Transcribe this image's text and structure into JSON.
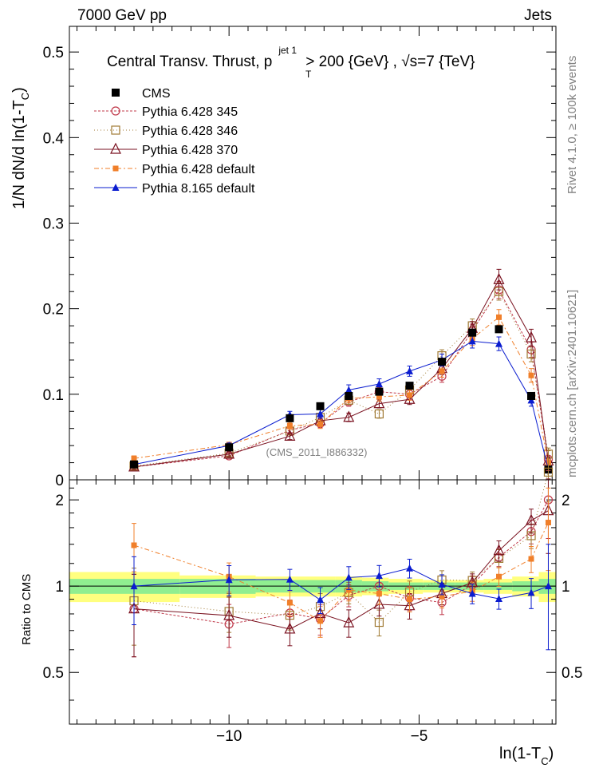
{
  "header": {
    "left": "7000 GeV pp",
    "right": "Jets"
  },
  "side": {
    "events": "Rivet 4.1.0, ≥ 100k events",
    "source": "mcplots.cern.ch [arXiv:2401.10621]"
  },
  "chart_data": {
    "type": "line",
    "title": {
      "main": "Central Transv. Thrust, p",
      "sup": "jet 1",
      "sub": "T",
      "mid": " > 200 {GeV} , ",
      "sqrt": "√s",
      "tail": "=7 {TeV}"
    },
    "xlabel": {
      "main": "ln(1-T",
      "sub": "C",
      "close": ")"
    },
    "ylabel": {
      "main": "1/N   dN/d ln(1-T",
      "sub": "C",
      "close": ")"
    },
    "ratio_ylabel": "Ratio to CMS",
    "watermark": "(CMS_2011_I886332)",
    "xlim": [
      -14.2,
      -1.4
    ],
    "ylim": [
      0,
      0.53
    ],
    "ratio_ylim": [
      0.33,
      2.35
    ],
    "xticks": [
      {
        "v": -10,
        "label": "−10"
      },
      {
        "v": -5,
        "label": "−5"
      }
    ],
    "yticks": [
      {
        "v": 0,
        "label": "0"
      },
      {
        "v": 0.1,
        "label": "0.1"
      },
      {
        "v": 0.2,
        "label": "0.2"
      },
      {
        "v": 0.3,
        "label": "0.3"
      },
      {
        "v": 0.4,
        "label": "0.4"
      },
      {
        "v": 0.5,
        "label": "0.5"
      }
    ],
    "ratio_yticks": [
      {
        "v": 0.5,
        "label": "0.5"
      },
      {
        "v": 1,
        "label": "1"
      },
      {
        "v": 2,
        "label": "2"
      }
    ],
    "x": [
      -12.5,
      -10.0,
      -8.4,
      -7.6,
      -6.85,
      -6.05,
      -5.25,
      -4.4,
      -3.6,
      -2.9,
      -2.05,
      -1.6
    ],
    "cms": {
      "name": "CMS",
      "values": [
        0.018,
        0.038,
        0.072,
        0.086,
        0.098,
        0.103,
        0.11,
        0.138,
        0.172,
        0.176,
        0.098,
        0.012
      ],
      "band_edges": [
        -14.2,
        -11.3,
        -9.3,
        -8.0,
        -7.2,
        -6.5,
        -5.8,
        -4.9,
        -4.05,
        -3.3,
        -2.55,
        -1.85,
        -1.4
      ],
      "band_stat": [
        0.06,
        0.06,
        0.05,
        0.05,
        0.05,
        0.04,
        0.03,
        0.03,
        0.03,
        0.03,
        0.04,
        0.06
      ],
      "band_tot": [
        0.12,
        0.09,
        0.08,
        0.08,
        0.08,
        0.07,
        0.06,
        0.05,
        0.05,
        0.06,
        0.08,
        0.12
      ]
    },
    "series": [
      {
        "name": "Pythia 6.428 345",
        "color": "#c0394a",
        "marker": "circle-open",
        "dash": "3,2",
        "values": [
          0.015,
          0.028,
          0.058,
          0.066,
          0.091,
          0.103,
          0.1,
          0.121,
          0.174,
          0.222,
          0.152,
          0.024
        ],
        "errors": [
          0.003,
          0.003,
          0.004,
          0.005,
          0.005,
          0.005,
          0.006,
          0.007,
          0.008,
          0.01,
          0.009,
          0.004
        ]
      },
      {
        "name": "Pythia 6.428 346",
        "color": "#a07a34",
        "marker": "square-open",
        "dash": "1,3",
        "values": [
          0.016,
          0.031,
          0.057,
          0.073,
          0.093,
          0.077,
          0.105,
          0.145,
          0.18,
          0.22,
          0.147,
          0.03
        ],
        "errors": [
          0.003,
          0.003,
          0.004,
          0.005,
          0.005,
          0.005,
          0.006,
          0.007,
          0.008,
          0.01,
          0.009,
          0.004
        ]
      },
      {
        "name": "Pythia 6.428 370",
        "color": "#7a1220",
        "marker": "triangle-open",
        "dash": "",
        "values": [
          0.015,
          0.03,
          0.051,
          0.069,
          0.073,
          0.089,
          0.094,
          0.13,
          0.177,
          0.234,
          0.166,
          0.022
        ],
        "errors": [
          0.003,
          0.003,
          0.004,
          0.005,
          0.005,
          0.005,
          0.006,
          0.007,
          0.008,
          0.012,
          0.01,
          0.004
        ]
      },
      {
        "name": "Pythia 6.428 default",
        "color": "#f07f2a",
        "marker": "square-filled",
        "dash": "6,3,2,3",
        "values": [
          0.025,
          0.041,
          0.063,
          0.065,
          0.095,
          0.097,
          0.099,
          0.127,
          0.165,
          0.19,
          0.122,
          0.02
        ],
        "errors": [
          0.003,
          0.003,
          0.004,
          0.005,
          0.005,
          0.005,
          0.006,
          0.007,
          0.008,
          0.009,
          0.008,
          0.004
        ]
      },
      {
        "name": "Pythia 8.165 default",
        "color": "#0a1ccf",
        "marker": "triangle-filled",
        "dash": "",
        "values": [
          0.018,
          0.04,
          0.076,
          0.077,
          0.105,
          0.112,
          0.127,
          0.14,
          0.162,
          0.159,
          0.093,
          0.012
        ],
        "errors": [
          0.003,
          0.003,
          0.004,
          0.005,
          0.006,
          0.006,
          0.006,
          0.007,
          0.008,
          0.008,
          0.007,
          0.003
        ]
      }
    ]
  }
}
